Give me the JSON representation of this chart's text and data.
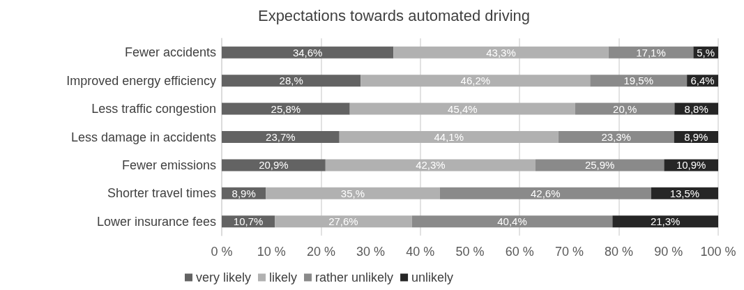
{
  "chart_data": {
    "type": "bar",
    "orientation": "horizontal",
    "stacked": true,
    "title": "Expectations towards automated driving",
    "categories": [
      "Fewer accidents",
      "Improved energy efficiency",
      "Less traffic congestion",
      "Less damage in accidents",
      "Fewer emissions",
      "Shorter travel times",
      "Lower insurance fees"
    ],
    "series": [
      {
        "name": "very likely",
        "color": "#636363",
        "values": [
          34.6,
          28,
          25.8,
          23.7,
          20.9,
          8.9,
          10.7
        ],
        "value_labels": [
          "34,6%",
          "28,%",
          "25,8%",
          "23,7%",
          "20,9%",
          "8,9%",
          "10,7%"
        ]
      },
      {
        "name": "likely",
        "color": "#b1b1b1",
        "values": [
          43.3,
          46.2,
          45.4,
          44.1,
          42.3,
          35,
          27.6
        ],
        "value_labels": [
          "43,3%",
          "46,2%",
          "45,4%",
          "44,1%",
          "42,3%",
          "35,%",
          "27,6%"
        ]
      },
      {
        "name": "rather unlikely",
        "color": "#8a8a8a",
        "values": [
          17.1,
          19.5,
          20,
          23.3,
          25.9,
          42.6,
          40.4
        ],
        "value_labels": [
          "17,1%",
          "19,5%",
          "20,%",
          "23,3%",
          "25,9%",
          "42,6%",
          "40,4%"
        ]
      },
      {
        "name": "unlikely",
        "color": "#262626",
        "values": [
          5,
          6.4,
          8.8,
          8.9,
          10.9,
          13.5,
          21.3
        ],
        "value_labels": [
          "5,%",
          "6,4%",
          "8,8%",
          "8,9%",
          "10,9%",
          "13,5%",
          "21,3%"
        ]
      }
    ],
    "xlim": [
      0,
      100
    ],
    "xticks": [
      {
        "value": 0,
        "label": "0 %"
      },
      {
        "value": 10,
        "label": "10 %"
      },
      {
        "value": 20,
        "label": "20 %"
      },
      {
        "value": 30,
        "label": "30 %"
      },
      {
        "value": 40,
        "label": "40 %"
      },
      {
        "value": 50,
        "label": "50 %"
      },
      {
        "value": 60,
        "label": "60 %"
      },
      {
        "value": 70,
        "label": "70 %"
      },
      {
        "value": 80,
        "label": "80 %"
      },
      {
        "value": 90,
        "label": "90 %"
      },
      {
        "value": 100,
        "label": "100 %"
      }
    ],
    "grid": "x",
    "legend": "bottom"
  }
}
